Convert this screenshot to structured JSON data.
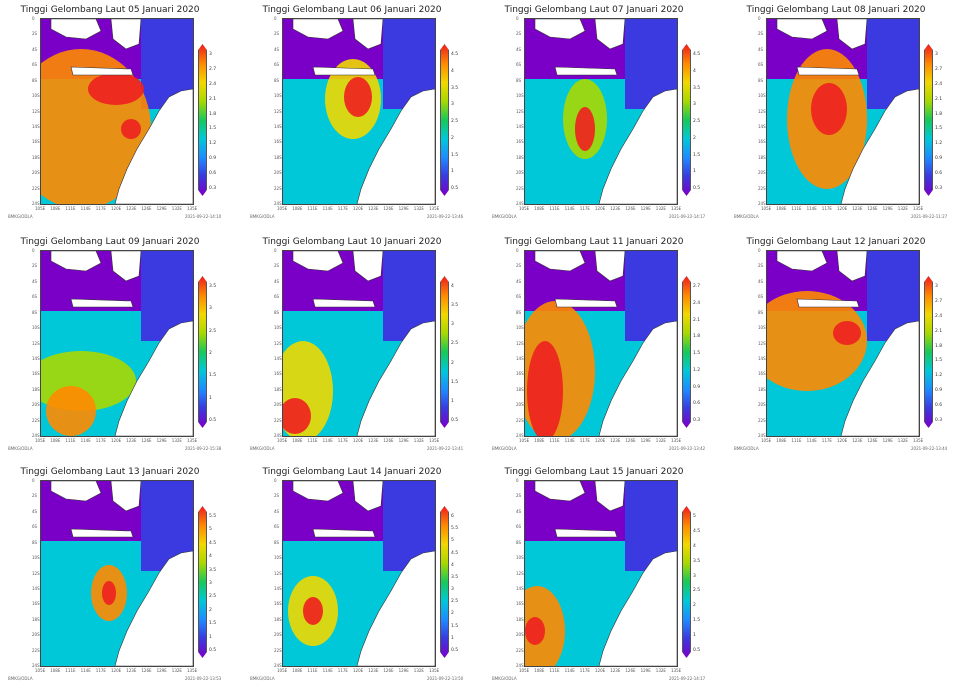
{
  "panels": [
    {
      "title": "Tinggi Gelombang Laut 05 Januari 2020",
      "ticks": [
        "3",
        "2.7",
        "2.4",
        "2.1",
        "1.8",
        "1.5",
        "1.2",
        "0.9",
        "0.6",
        "0.3"
      ],
      "footer_left": "BMKG/ODLA",
      "footer_right": "2021-09-22-14:10"
    },
    {
      "title": "Tinggi Gelombang Laut 06 Januari 2020",
      "ticks": [
        "4.5",
        "4",
        "3.5",
        "3",
        "2.5",
        "2",
        "1.5",
        "1",
        "0.5"
      ],
      "footer_left": "BMKG/ODLA",
      "footer_right": "2021-09-22-13:46"
    },
    {
      "title": "Tinggi Gelombang Laut 07 Januari 2020",
      "ticks": [
        "4.5",
        "4",
        "3.5",
        "3",
        "2.5",
        "2",
        "1.5",
        "1",
        "0.5"
      ],
      "footer_left": "BMKG/ODLA",
      "footer_right": "2021-09-22-14:17"
    },
    {
      "title": "Tinggi Gelombang Laut 08 Januari 2020",
      "ticks": [
        "3",
        "2.7",
        "2.4",
        "2.1",
        "1.8",
        "1.5",
        "1.2",
        "0.9",
        "0.6",
        "0.3"
      ],
      "footer_left": "BMKG/ODLA",
      "footer_right": "2021-09-22-11:27"
    },
    {
      "title": "Tinggi Gelombang Laut 09 Januari 2020",
      "ticks": [
        "3.5",
        "3",
        "2.5",
        "2",
        "1.5",
        "1",
        "0.5"
      ],
      "footer_left": "BMKG/ODLA",
      "footer_right": "2021-09-22-15:38"
    },
    {
      "title": "Tinggi Gelombang Laut 10 Januari 2020",
      "ticks": [
        "4",
        "3.5",
        "3",
        "2.5",
        "2",
        "1.5",
        "1",
        "0.5"
      ],
      "footer_left": "BMKG/ODLA",
      "footer_right": "2021-09-22-13:41"
    },
    {
      "title": "Tinggi Gelombang Laut 11 Januari 2020",
      "ticks": [
        "2.7",
        "2.4",
        "2.1",
        "1.8",
        "1.5",
        "1.2",
        "0.9",
        "0.6",
        "0.3"
      ],
      "footer_left": "BMKG/ODLA",
      "footer_right": "2021-09-22-13:42"
    },
    {
      "title": "Tinggi Gelombang Laut 12 Januari 2020",
      "ticks": [
        "3",
        "2.7",
        "2.4",
        "2.1",
        "1.8",
        "1.5",
        "1.2",
        "0.9",
        "0.6",
        "0.3"
      ],
      "footer_left": "BMKG/ODLA",
      "footer_right": "2021-09-22-13:44"
    },
    {
      "title": "Tinggi Gelombang Laut 13 Januari 2020",
      "ticks": [
        "5.5",
        "5",
        "4.5",
        "4",
        "3.5",
        "3",
        "2.5",
        "2",
        "1.5",
        "1",
        "0.5"
      ],
      "footer_left": "BMKG/ODLA",
      "footer_right": "2021-09-22-13:53"
    },
    {
      "title": "Tinggi Gelombang Laut 14 Januari 2020",
      "ticks": [
        "6",
        "5.5",
        "5",
        "4.5",
        "4",
        "3.5",
        "3",
        "2.5",
        "2",
        "1.5",
        "1",
        "0.5"
      ],
      "footer_left": "BMKG/ODLA",
      "footer_right": "2021-09-22-13:50"
    },
    {
      "title": "Tinggi Gelombang Laut 15 Januari 2020",
      "ticks": [
        "5",
        "4.5",
        "4",
        "3.5",
        "3",
        "2.5",
        "2",
        "1.5",
        "1",
        "0.5"
      ],
      "footer_left": "BMKG/ODLA",
      "footer_right": "2021-09-22-14:17"
    }
  ],
  "axes": {
    "y_labels": [
      "0",
      "2S",
      "4S",
      "6S",
      "8S",
      "10S",
      "12S",
      "14S",
      "16S",
      "18S",
      "20S",
      "22S",
      "24S"
    ],
    "x_labels": [
      "105E",
      "108E",
      "111E",
      "114E",
      "117E",
      "120E",
      "123E",
      "126E",
      "129E",
      "132E",
      "135E"
    ]
  },
  "colors": {
    "land": "#ffffff",
    "coast": "#333333",
    "scale": [
      "#7a00c8",
      "#3a3ae0",
      "#1e8cff",
      "#00c8d8",
      "#18c85a",
      "#a8d800",
      "#f0d800",
      "#ff8a00",
      "#ee2020"
    ]
  }
}
